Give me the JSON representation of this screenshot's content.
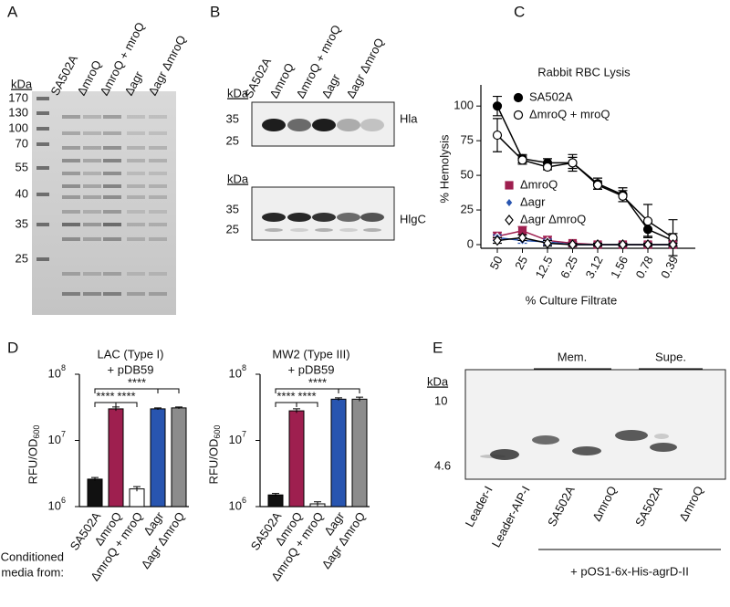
{
  "gel_a": {
    "panel": "A",
    "kda_label": "kDa",
    "markers": [
      "170",
      "130",
      "100",
      "70",
      "55",
      "40",
      "35",
      "25"
    ],
    "lanes": [
      "SA502A",
      "ΔmroQ",
      "ΔmroQ + mroQ",
      "Δagr",
      "Δagr ΔmroQ"
    ]
  },
  "blot_b": {
    "panel": "B",
    "lanes": [
      "SA502A",
      "ΔmroQ",
      "ΔmroQ + mroQ",
      "Δagr",
      "Δagr ΔmroQ"
    ],
    "blots": [
      {
        "kda_label": "kDa",
        "markers": [
          "35",
          "25"
        ],
        "label": "Hla"
      },
      {
        "kda_label": "kDa",
        "markers": [
          "35",
          "25"
        ],
        "label": "HlgC"
      }
    ]
  },
  "chart_data": [
    {
      "type": "line",
      "panel": "C",
      "title": "Rabbit RBC Lysis",
      "xlabel": "% Culture Filtrate",
      "ylabel": "% Hemolysis",
      "categories": [
        "50",
        "25",
        "12.5",
        "6.25",
        "3.12",
        "1.56",
        "0.78",
        "0.39"
      ],
      "ylim": [
        0,
        110
      ],
      "yticks": [
        0,
        25,
        50,
        75,
        100
      ],
      "series": [
        {
          "name": "SA502A",
          "color": "#000000",
          "marker": "circle",
          "values": [
            100,
            62,
            59,
            59,
            44,
            36,
            11,
            3
          ],
          "errors": [
            7,
            3,
            3,
            6,
            4,
            5,
            5,
            5
          ]
        },
        {
          "name": "ΔmroQ + mroQ",
          "color": "#000000",
          "marker": "open-circle",
          "values": [
            79,
            61,
            56,
            59,
            43,
            35,
            17,
            5
          ],
          "errors": [
            12,
            3,
            2,
            4,
            3,
            4,
            12,
            13
          ]
        },
        {
          "name": "ΔmroQ",
          "color": "#9e1f4f",
          "marker": "square",
          "values": [
            6,
            10,
            3,
            1,
            0,
            0,
            0,
            0
          ],
          "errors": [
            3,
            3,
            3,
            1,
            1,
            1,
            1,
            1
          ]
        },
        {
          "name": "Δagr",
          "color": "#2855b0",
          "marker": "diamond",
          "values": [
            5,
            3,
            2,
            0,
            0,
            0,
            0,
            0
          ],
          "errors": [
            2,
            2,
            2,
            1,
            1,
            1,
            1,
            1
          ]
        },
        {
          "name": "Δagr ΔmroQ",
          "color": "#000000",
          "marker": "open-diamond",
          "values": [
            3,
            5,
            1,
            0,
            0,
            0,
            0,
            0
          ],
          "errors": [
            2,
            2,
            2,
            1,
            1,
            1,
            1,
            1
          ]
        }
      ]
    },
    {
      "type": "bar",
      "panel": "D",
      "title": [
        "LAC (Type I)",
        "+ pDB59"
      ],
      "ylabel": "RFU/OD",
      "ylabel_subscript": "600",
      "log_scale": true,
      "side_label": [
        "Conditioned",
        "media from:"
      ],
      "categories": [
        "SA502A",
        "ΔmroQ",
        "ΔmroQ + mroQ",
        "Δagr",
        "Δagr ΔmroQ"
      ],
      "values": [
        2600000,
        30000000,
        1850000,
        30000000,
        31000000
      ],
      "errors": [
        150000,
        2000000,
        150000,
        1000000,
        1000000
      ],
      "colors": [
        "#111111",
        "#9e1f4f",
        "#ffffff",
        "#2855b0",
        "#8c8c8c"
      ],
      "ylim": [
        1000000,
        100000000
      ],
      "yticks": [
        {
          "value": 1000000,
          "label": "10",
          "exponent": "6"
        },
        {
          "value": 10000000,
          "label": "10",
          "exponent": "7"
        },
        {
          "value": 100000000,
          "label": "10",
          "exponent": "8"
        }
      ],
      "significance": [
        "****",
        "****",
        "****"
      ]
    },
    {
      "type": "bar",
      "title": [
        "MW2 (Type III)",
        "+ pDB59"
      ],
      "ylabel": "RFU/OD",
      "ylabel_subscript": "600",
      "log_scale": true,
      "categories": [
        "SA502A",
        "ΔmroQ",
        "ΔmroQ + mroQ",
        "Δagr",
        "Δagr ΔmroQ"
      ],
      "values": [
        1500000,
        28000000,
        1100000,
        42000000,
        42000000
      ],
      "errors": [
        80000,
        2000000,
        80000,
        2000000,
        3000000
      ],
      "colors": [
        "#111111",
        "#9e1f4f",
        "#ffffff",
        "#2855b0",
        "#8c8c8c"
      ],
      "ylim": [
        1000000,
        100000000
      ],
      "yticks": [
        {
          "value": 1000000,
          "label": "10",
          "exponent": "6"
        },
        {
          "value": 10000000,
          "label": "10",
          "exponent": "7"
        },
        {
          "value": 100000000,
          "label": "10",
          "exponent": "8"
        }
      ],
      "significance": [
        "****",
        "****",
        "****"
      ]
    }
  ],
  "gel_e": {
    "panel": "E",
    "kda_label": "kDa",
    "markers": [
      "10",
      "4.6"
    ],
    "groups": [
      "Mem.",
      "Supe."
    ],
    "lanes": [
      "Leader-I",
      "Leader-AIP-I",
      "SA502A",
      "ΔmroQ",
      "SA502A",
      "ΔmroQ"
    ],
    "footer": "+ pOS1-6x-His-agrD-II"
  }
}
